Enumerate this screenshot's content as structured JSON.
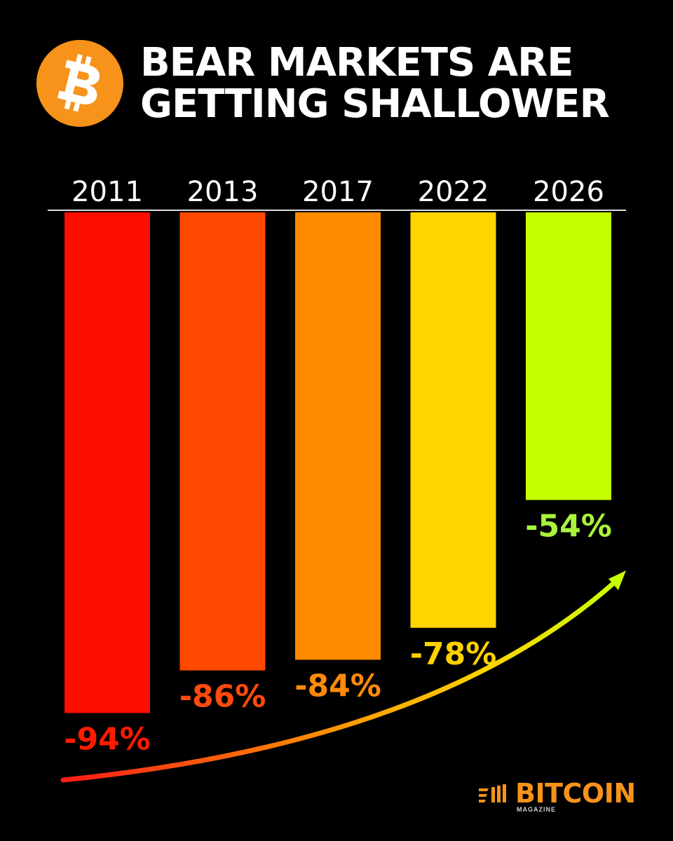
{
  "header": {
    "title_line1": "BEAR MARKETS ARE",
    "title_line2": "GETTING SHALLOWER"
  },
  "chart_data": {
    "type": "bar",
    "title": "BEAR MARKETS ARE GETTING SHALLOWER",
    "categories": [
      "2011",
      "2013",
      "2017",
      "2022",
      "2026"
    ],
    "values": [
      -94,
      -86,
      -84,
      -78,
      -54
    ],
    "data_labels": [
      "-94%",
      "-86%",
      "-84%",
      "-78%",
      "-54%"
    ],
    "bar_colors": [
      "#ff0d00",
      "#ff4800",
      "#ff8c00",
      "#ffd500",
      "#c4ff00"
    ],
    "label_colors": [
      "#ff1a00",
      "#ff4a0e",
      "#ff8a0a",
      "#ffd200",
      "#a8f53a"
    ],
    "ylim": [
      0,
      -100
    ],
    "category_axis_position": "top",
    "grid": false,
    "legend": "none",
    "trend_arrow": {
      "direction": "up-right",
      "gradient": [
        "#ff1a1a",
        "#ff8c00",
        "#ffd400",
        "#c6ff00"
      ]
    }
  },
  "branding": {
    "name": "BITCOIN",
    "sub": "MAGAZINE",
    "color": "#f7931a"
  },
  "logo": {
    "icon": "bitcoin-icon",
    "color": "#f7931a"
  }
}
